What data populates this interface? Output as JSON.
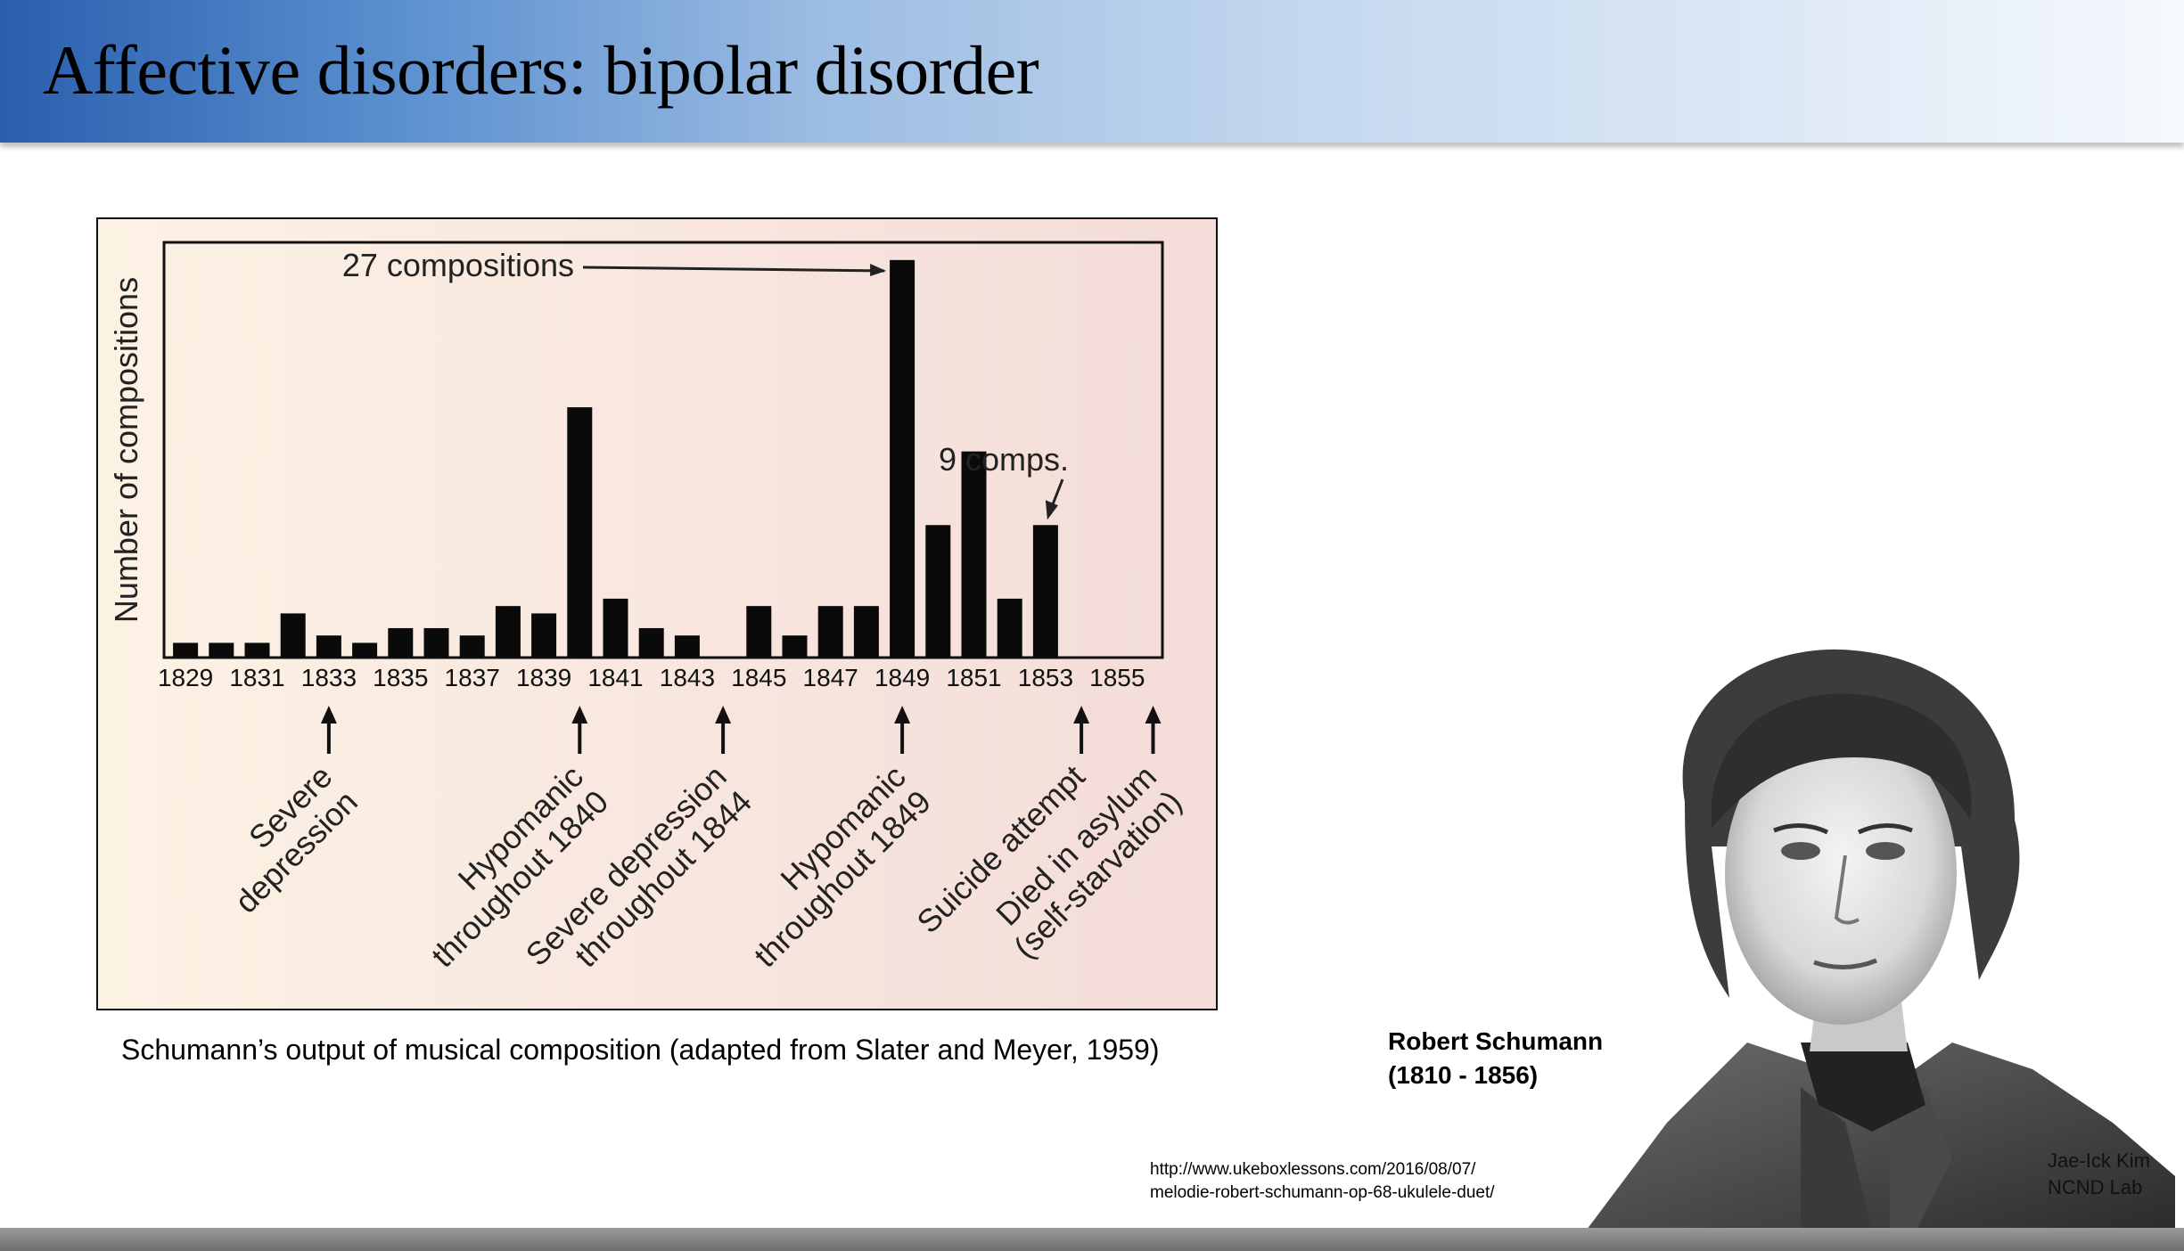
{
  "slide": {
    "title": "Affective disorders: bipolar disorder",
    "caption": "Schumann’s output of musical composition (adapted from Slater and Meyer, 1959)",
    "portrait_name": "Robert Schumann",
    "portrait_years": "(1810 - 1856)",
    "source_line1": "http://www.ukeboxlessons.com/2016/08/07/",
    "source_line2": "melodie-robert-schumann-op-68-ukulele-duet/",
    "credit_line1": "Jae-Ick Kim",
    "credit_line2": "NCND Lab"
  },
  "chart_data": {
    "type": "bar",
    "ylabel": "Number of compositions",
    "xlabel": "",
    "x_tick_labels": [
      "1829",
      "1831",
      "1833",
      "1835",
      "1837",
      "1839",
      "1841",
      "1843",
      "1845",
      "1847",
      "1849",
      "1851",
      "1853",
      "1855"
    ],
    "categories": [
      "1829",
      "1830",
      "1831",
      "1832",
      "1833",
      "1834",
      "1835",
      "1836",
      "1837",
      "1838",
      "1839",
      "1840",
      "1841",
      "1842",
      "1843",
      "1844",
      "1845",
      "1846",
      "1847",
      "1848",
      "1849",
      "1850",
      "1851",
      "1852",
      "1853",
      "1854",
      "1855",
      "1856"
    ],
    "values": [
      1,
      1,
      1,
      3,
      1.5,
      1,
      2,
      2,
      1.5,
      3.5,
      3,
      17,
      4,
      2,
      1.5,
      0,
      3.5,
      1.5,
      3.5,
      3.5,
      27,
      9,
      14,
      4,
      9,
      0,
      0,
      0
    ],
    "ylim": [
      0,
      28.2
    ],
    "annotations": [
      {
        "text": "27 compositions",
        "target": "1849"
      },
      {
        "text": "9 comps.",
        "target": "1853"
      }
    ],
    "events": [
      {
        "year": "1833",
        "lines": [
          "Severe",
          "depression"
        ]
      },
      {
        "year": "1840",
        "lines": [
          "Hypomanic",
          "throughout 1840"
        ]
      },
      {
        "year": "1844",
        "lines": [
          "Severe depression",
          "throughout 1844"
        ]
      },
      {
        "year": "1849",
        "lines": [
          "Hypomanic",
          "throughout 1849"
        ]
      },
      {
        "year": "1854",
        "lines": [
          "Suicide attempt"
        ]
      },
      {
        "year": "1856",
        "lines": [
          "Died in asylum",
          "(self-starvation)"
        ]
      }
    ]
  }
}
